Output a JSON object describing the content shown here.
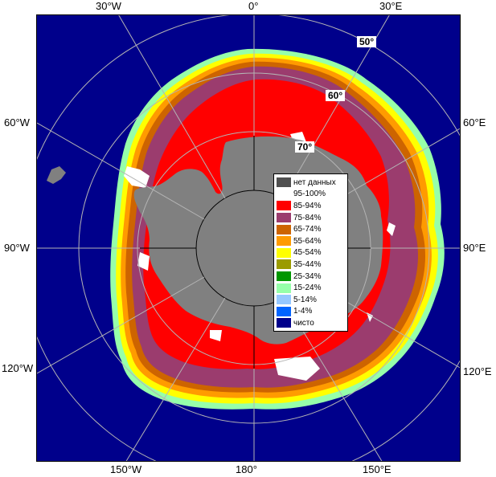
{
  "map": {
    "colors": {
      "ocean": "#00008b",
      "land": "#808080",
      "grid": "#b4b4b4",
      "pole_line": "#000000"
    },
    "longitude_labels": {
      "top_30w": "30°W",
      "top_0": "0°",
      "top_30e": "30°E",
      "left_60w": "60°W",
      "right_60e": "60°E",
      "left_90w": "90°W",
      "right_90e": "90°E",
      "left_120w": "120°W",
      "right_120e": "120°E",
      "bottom_150w": "150°W",
      "bottom_180": "180°",
      "bottom_150e": "150°E"
    },
    "latitude_labels": {
      "lat50": "50°",
      "lat60": "60°",
      "lat70": "70°"
    }
  },
  "legend": {
    "items": [
      {
        "label": "нет данных",
        "color": "#505050"
      },
      {
        "label": "95-100%",
        "color": "#ffffff"
      },
      {
        "label": "85-94%",
        "color": "#ff0000"
      },
      {
        "label": "75-84%",
        "color": "#9b3c6e"
      },
      {
        "label": "65-74%",
        "color": "#cd6400"
      },
      {
        "label": "55-64%",
        "color": "#ff9b00"
      },
      {
        "label": "45-54%",
        "color": "#ffff00"
      },
      {
        "label": "35-44%",
        "color": "#9b9b00"
      },
      {
        "label": "25-34%",
        "color": "#009600"
      },
      {
        "label": "15-24%",
        "color": "#96ffaa"
      },
      {
        "label": "5-14%",
        "color": "#96c8ff"
      },
      {
        "label": "1-4%",
        "color": "#0064ff"
      },
      {
        "label": "чисто",
        "color": "#00008b"
      }
    ]
  }
}
